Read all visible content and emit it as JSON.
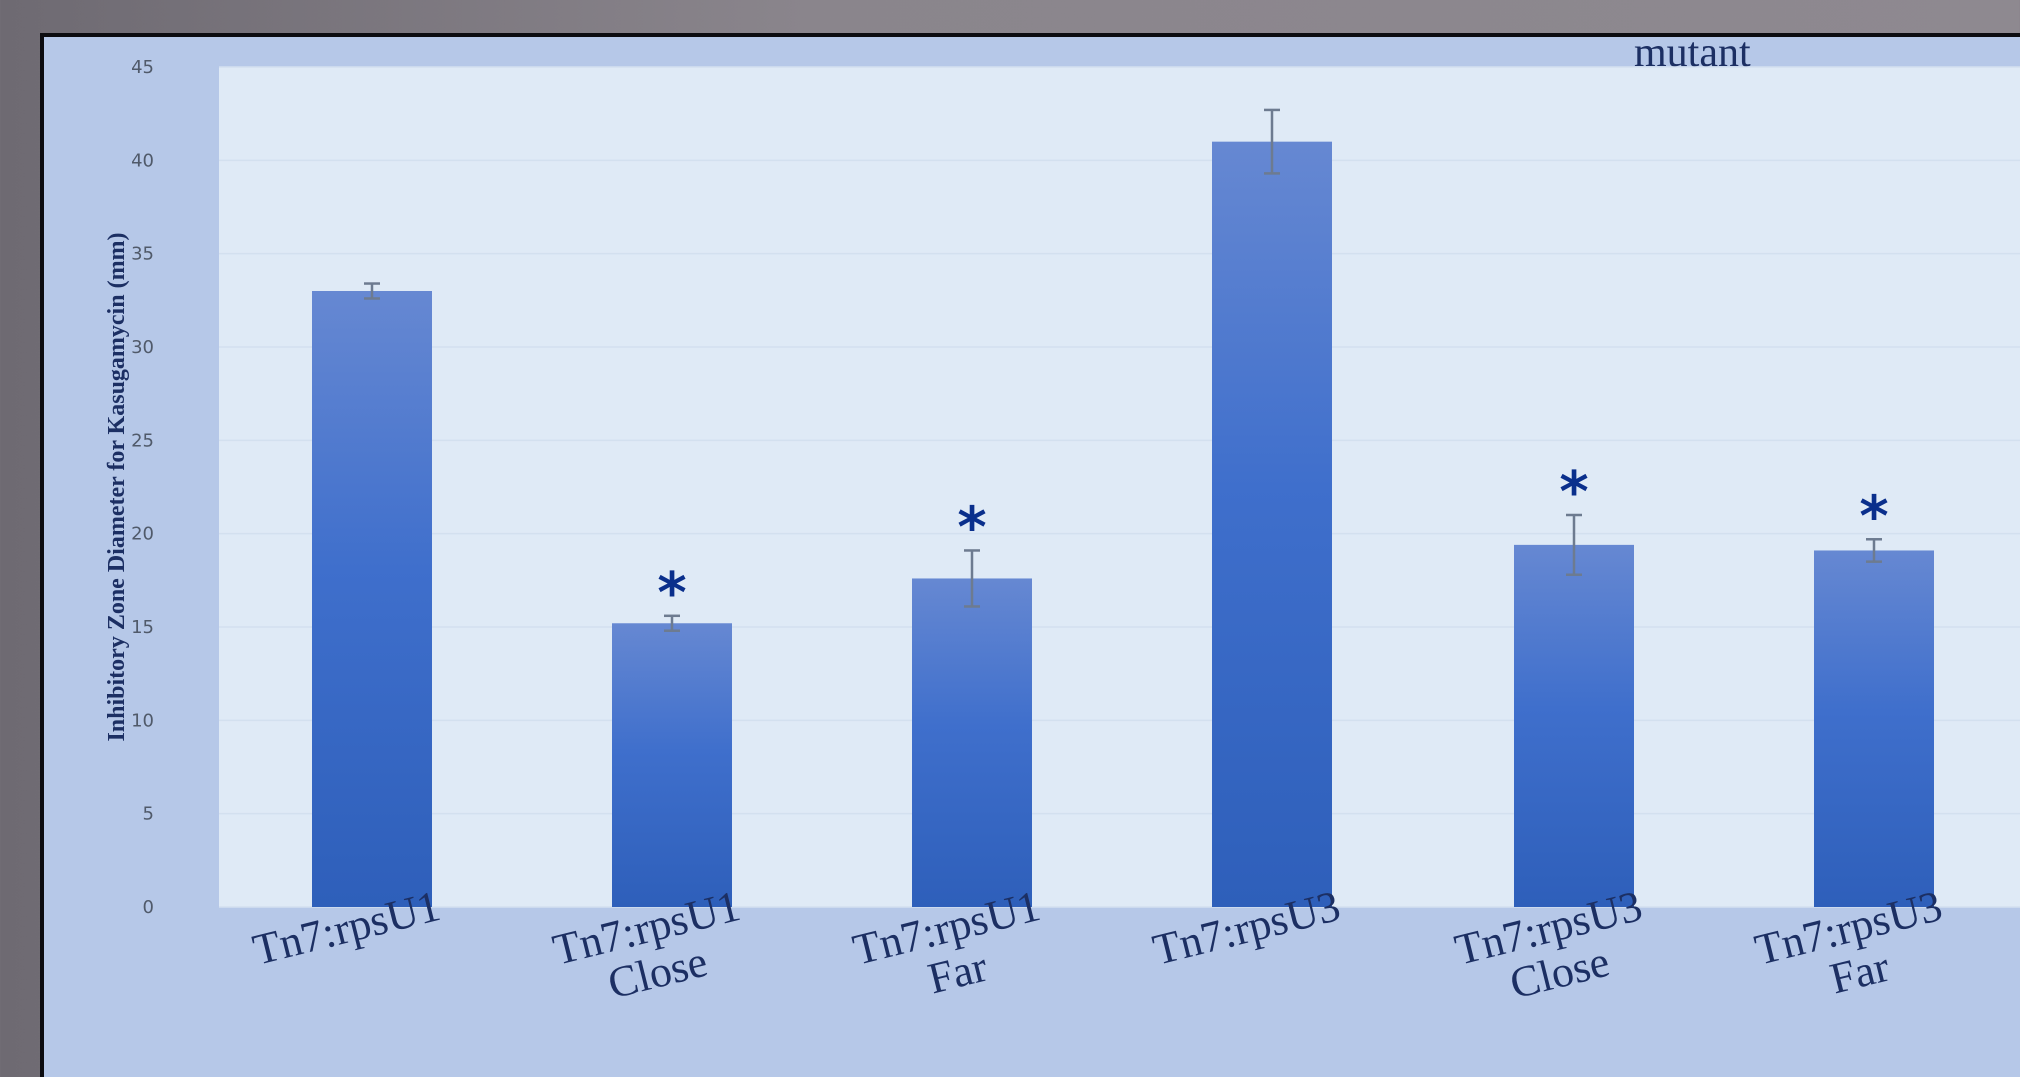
{
  "header_fragment": "mutant",
  "chart_data": {
    "type": "bar",
    "title": "",
    "ylabel": "Inhibitory Zone Diameter for Kasugamycin (mm)",
    "xlabel": "",
    "ylim": [
      0,
      45
    ],
    "yticks": [
      0,
      5,
      10,
      15,
      20,
      25,
      30,
      35,
      40,
      45
    ],
    "grid": true,
    "categories": [
      [
        "Tn7:rpsU1"
      ],
      [
        "Tn7:rpsU1",
        "Close"
      ],
      [
        "Tn7:rpsU1",
        "Far"
      ],
      [
        "Tn7:rpsU3"
      ],
      [
        "Tn7:rpsU3",
        "Close"
      ],
      [
        "Tn7:rpsU3",
        "Far"
      ]
    ],
    "values": [
      33.0,
      15.2,
      17.6,
      41.0,
      19.4,
      19.1
    ],
    "errors": [
      0.4,
      0.4,
      1.5,
      1.7,
      1.6,
      0.6
    ],
    "significance": [
      "",
      "*",
      "*",
      "",
      "*",
      "*"
    ],
    "bar_color": "#3a6cc8",
    "significance_color": "#0a2f8c"
  }
}
